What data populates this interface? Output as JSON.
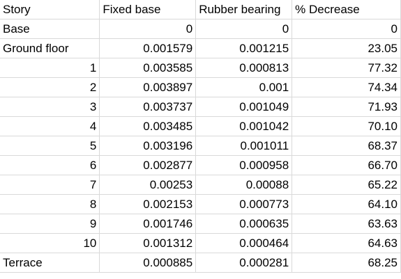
{
  "table": {
    "headers": [
      "Story",
      "Fixed base",
      "Rubber bearing",
      "% Decrease"
    ],
    "rows": [
      [
        "Base",
        "0",
        "0",
        "0"
      ],
      [
        "Ground floor",
        "0.001579",
        "0.001215",
        "23.05"
      ],
      [
        "1",
        "0.003585",
        "0.000813",
        "77.32"
      ],
      [
        "2",
        "0.003897",
        "0.001",
        "74.34"
      ],
      [
        "3",
        "0.003737",
        "0.001049",
        "71.93"
      ],
      [
        "4",
        "0.003485",
        "0.001042",
        "70.10"
      ],
      [
        "5",
        "0.003196",
        "0.001011",
        "68.37"
      ],
      [
        "6",
        "0.002877",
        "0.000958",
        "66.70"
      ],
      [
        "7",
        "0.00253",
        "0.00088",
        "65.22"
      ],
      [
        "8",
        "0.002153",
        "0.000773",
        "64.10"
      ],
      [
        "9",
        "0.001746",
        "0.000635",
        "63.63"
      ],
      [
        "10",
        "0.001312",
        "0.000464",
        "64.63"
      ],
      [
        "Terrace",
        "0.000885",
        "0.000281",
        "68.25"
      ]
    ]
  }
}
